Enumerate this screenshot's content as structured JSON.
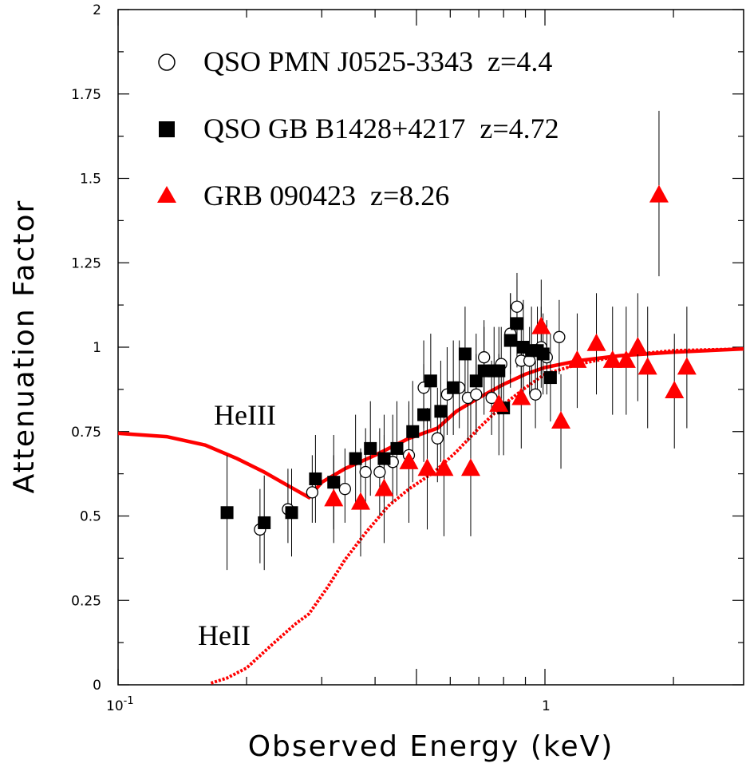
{
  "chart_data": {
    "type": "scatter",
    "xlabel": "Observed Energy (keV)",
    "ylabel": "Attenuation Factor",
    "xscale": "log",
    "xlim": [
      0.1,
      2.92
    ],
    "ylim": [
      0,
      2
    ],
    "y_ticks": [
      "0",
      "0.25",
      "0.5",
      "0.75",
      "1",
      "1.25",
      "1.5",
      "1.75",
      "2"
    ],
    "x_tick_labels": {
      "base": "10",
      "exp": "-1",
      "one": "1"
    },
    "legend_position": "top-left",
    "series": [
      {
        "name": "QSO PMN J0525-3343  z=4.4",
        "marker": "open-circle",
        "color": "#000000",
        "points": [
          [
            0.215,
            0.46,
            0.58,
            0.36
          ],
          [
            0.25,
            0.52,
            0.64,
            0.42
          ],
          [
            0.285,
            0.57,
            0.68,
            0.48
          ],
          [
            0.34,
            0.58,
            0.7,
            0.48
          ],
          [
            0.38,
            0.63,
            0.76,
            0.52
          ],
          [
            0.41,
            0.63,
            0.76,
            0.5
          ],
          [
            0.44,
            0.66,
            0.8,
            0.54
          ],
          [
            0.48,
            0.68,
            0.83,
            0.56
          ],
          [
            0.52,
            0.88,
            1.02,
            0.76
          ],
          [
            0.56,
            0.73,
            0.88,
            0.6
          ],
          [
            0.59,
            0.86,
            1.0,
            0.74
          ],
          [
            0.63,
            0.88,
            1.02,
            0.76
          ],
          [
            0.66,
            0.85,
            0.98,
            0.72
          ],
          [
            0.69,
            0.86,
            0.98,
            0.74
          ],
          [
            0.72,
            0.97,
            1.08,
            0.86
          ],
          [
            0.75,
            0.85,
            0.96,
            0.74
          ],
          [
            0.79,
            0.95,
            1.06,
            0.84
          ],
          [
            0.83,
            1.04,
            1.16,
            0.92
          ],
          [
            0.86,
            1.12,
            1.22,
            1.02
          ],
          [
            0.88,
            0.96,
            1.08,
            0.84
          ],
          [
            0.92,
            0.96,
            1.06,
            0.86
          ],
          [
            0.95,
            0.86,
            0.96,
            0.76
          ],
          [
            0.98,
            1.0,
            1.12,
            0.88
          ],
          [
            1.01,
            0.97,
            1.08,
            0.86
          ],
          [
            1.08,
            1.03,
            1.14,
            0.92
          ]
        ]
      },
      {
        "name": "QSO GB B1428+4217  z=4.72",
        "marker": "filled-square",
        "color": "#000000",
        "points": [
          [
            0.18,
            0.51,
            0.68,
            0.34
          ],
          [
            0.22,
            0.48,
            0.62,
            0.34
          ],
          [
            0.255,
            0.51,
            0.64,
            0.38
          ],
          [
            0.29,
            0.61,
            0.74,
            0.48
          ],
          [
            0.32,
            0.6,
            0.74,
            0.46
          ],
          [
            0.36,
            0.67,
            0.8,
            0.54
          ],
          [
            0.39,
            0.7,
            0.84,
            0.56
          ],
          [
            0.42,
            0.67,
            0.8,
            0.54
          ],
          [
            0.45,
            0.7,
            0.84,
            0.56
          ],
          [
            0.49,
            0.75,
            0.9,
            0.6
          ],
          [
            0.52,
            0.8,
            0.95,
            0.66
          ],
          [
            0.54,
            0.9,
            1.04,
            0.76
          ],
          [
            0.57,
            0.81,
            0.96,
            0.66
          ],
          [
            0.61,
            0.88,
            1.02,
            0.74
          ],
          [
            0.65,
            0.98,
            1.12,
            0.84
          ],
          [
            0.69,
            0.9,
            1.04,
            0.76
          ],
          [
            0.72,
            0.93,
            1.06,
            0.8
          ],
          [
            0.76,
            0.93,
            1.06,
            0.8
          ],
          [
            0.78,
            0.93,
            1.06,
            0.8
          ],
          [
            0.8,
            0.82,
            0.96,
            0.68
          ],
          [
            0.83,
            1.02,
            1.16,
            0.88
          ],
          [
            0.86,
            1.07,
            1.2,
            0.94
          ],
          [
            0.89,
            1.0,
            1.14,
            0.86
          ],
          [
            0.93,
            0.99,
            1.12,
            0.86
          ],
          [
            0.96,
            0.99,
            1.12,
            0.86
          ],
          [
            0.99,
            0.98,
            1.1,
            0.86
          ],
          [
            1.03,
            0.91,
            1.04,
            0.78
          ]
        ]
      },
      {
        "name": "GRB 090423  z=8.26",
        "marker": "filled-triangle",
        "color": "#ff0000",
        "points": [
          [
            0.32,
            0.55,
            0.68,
            0.42
          ],
          [
            0.37,
            0.54,
            0.7,
            0.38
          ],
          [
            0.42,
            0.58,
            0.74,
            0.42
          ],
          [
            0.48,
            0.66,
            0.84,
            0.48
          ],
          [
            0.53,
            0.64,
            0.82,
            0.46
          ],
          [
            0.58,
            0.64,
            0.82,
            0.44
          ],
          [
            0.67,
            0.64,
            0.84,
            0.44
          ],
          [
            0.78,
            0.83,
            0.98,
            0.68
          ],
          [
            0.88,
            0.85,
            1.0,
            0.7
          ],
          [
            0.98,
            1.06,
            1.2,
            0.92
          ],
          [
            1.09,
            0.78,
            0.92,
            0.64
          ],
          [
            1.19,
            0.96,
            1.1,
            0.82
          ],
          [
            1.32,
            1.01,
            1.16,
            0.86
          ],
          [
            1.44,
            0.96,
            1.12,
            0.8
          ],
          [
            1.55,
            0.96,
            1.12,
            0.8
          ],
          [
            1.65,
            1.0,
            1.16,
            0.84
          ],
          [
            1.74,
            0.94,
            1.12,
            0.76
          ],
          [
            1.85,
            1.45,
            1.7,
            1.21
          ],
          [
            2.01,
            0.87,
            1.04,
            0.7
          ],
          [
            2.15,
            0.94,
            1.12,
            0.76
          ]
        ]
      }
    ],
    "curves": [
      {
        "label": "HeIII",
        "style": "solid",
        "color": "#ff0000",
        "points": [
          [
            0.1,
            0.745
          ],
          [
            0.13,
            0.735
          ],
          [
            0.16,
            0.71
          ],
          [
            0.19,
            0.67
          ],
          [
            0.22,
            0.63
          ],
          [
            0.25,
            0.59
          ],
          [
            0.28,
            0.555
          ],
          [
            0.3,
            0.6
          ],
          [
            0.34,
            0.64
          ],
          [
            0.4,
            0.68
          ],
          [
            0.48,
            0.73
          ],
          [
            0.56,
            0.76
          ],
          [
            0.62,
            0.81
          ],
          [
            0.7,
            0.85
          ],
          [
            0.8,
            0.89
          ],
          [
            0.9,
            0.92
          ],
          [
            1.0,
            0.94
          ],
          [
            1.2,
            0.96
          ],
          [
            1.5,
            0.975
          ],
          [
            2.0,
            0.985
          ],
          [
            2.92,
            0.995
          ]
        ]
      },
      {
        "label": "HeII",
        "style": "dotted",
        "color": "#ff0000",
        "points": [
          [
            0.165,
            0.005
          ],
          [
            0.18,
            0.02
          ],
          [
            0.2,
            0.05
          ],
          [
            0.23,
            0.12
          ],
          [
            0.26,
            0.18
          ],
          [
            0.28,
            0.21
          ],
          [
            0.31,
            0.29
          ],
          [
            0.34,
            0.37
          ],
          [
            0.38,
            0.45
          ],
          [
            0.43,
            0.53
          ],
          [
            0.48,
            0.58
          ],
          [
            0.55,
            0.63
          ],
          [
            0.62,
            0.69
          ],
          [
            0.7,
            0.76
          ],
          [
            0.8,
            0.83
          ],
          [
            0.9,
            0.88
          ],
          [
            1.0,
            0.92
          ],
          [
            1.2,
            0.95
          ],
          [
            1.5,
            0.975
          ],
          [
            2.0,
            0.99
          ],
          [
            2.92,
            0.995
          ]
        ]
      }
    ]
  }
}
